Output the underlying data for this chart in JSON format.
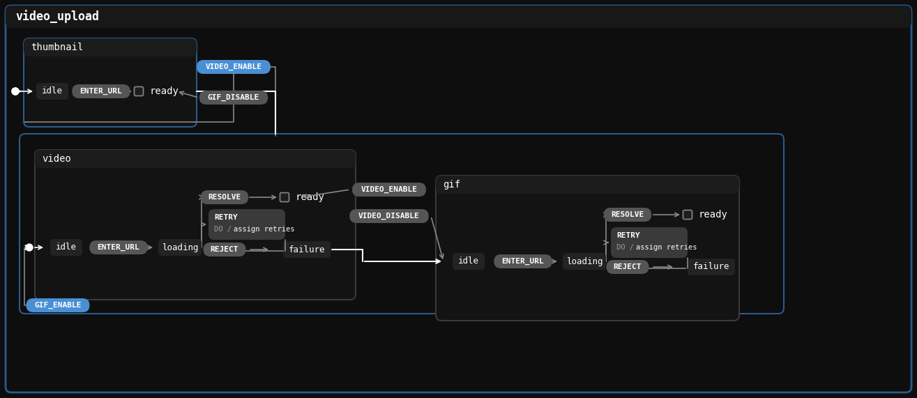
{
  "bg_color": "#0e0e0e",
  "outer_edge": "#2a5a8a",
  "inner_edge_blue": "#2a5a8a",
  "inner_edge_gray": "#4a4a4a",
  "node_bg": "#232323",
  "retry_bg": "#3c3c3c",
  "title_bar_bg": "#1a1a1a",
  "blue_pill": "#4a8fd4",
  "gray_pill": "#555555",
  "text_white": "#ffffff",
  "text_gray": "#aaaaaa",
  "arrow_color": "#888888",
  "white": "#ffffff",
  "title": "video_upload",
  "thumbnail_label": "thumbnail",
  "video_label": "video",
  "gif_label": "gif"
}
